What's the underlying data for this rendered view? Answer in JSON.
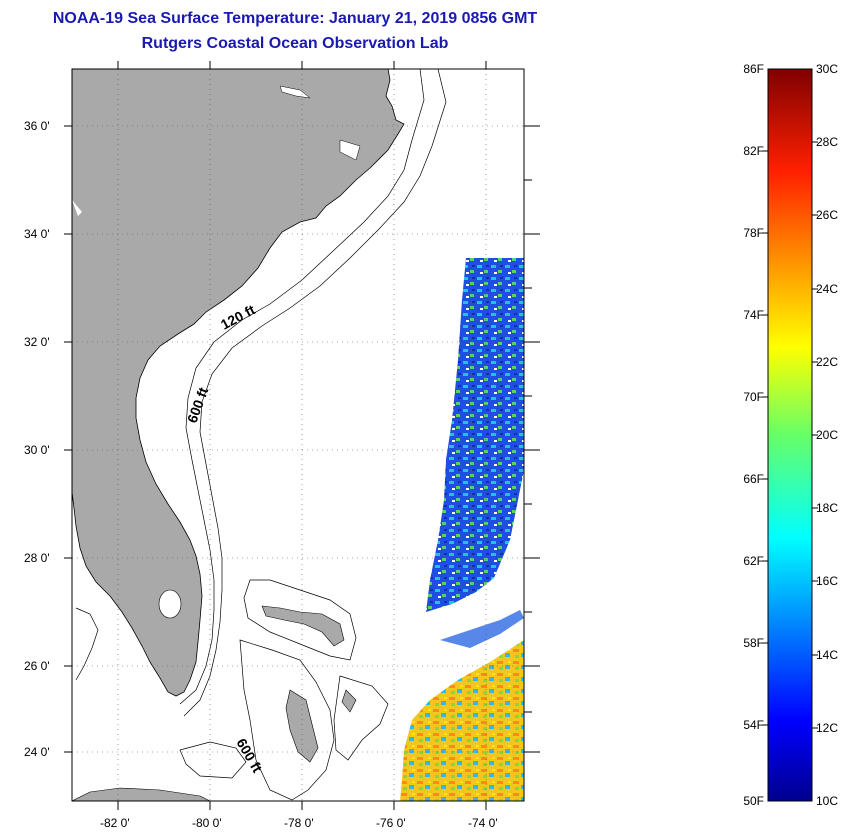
{
  "header": {
    "title_line1": "NOAA-19 Sea Surface Temperature:  January 21, 2019 0856 GMT",
    "title_line2": "Rutgers Coastal Ocean Observation Lab"
  },
  "map": {
    "lat_labels": [
      "36 0'",
      "34 0'",
      "32 0'",
      "30 0'",
      "28 0'",
      "26 0'",
      "24 0'"
    ],
    "lon_labels": [
      "-82 0'",
      "-80 0'",
      "-78 0'",
      "-76 0'",
      "-74 0'"
    ],
    "contour_labels": {
      "c120": "120 ft",
      "c600a": "600 ft",
      "c600b": "600 ft"
    },
    "land_color": "#a9a9a9",
    "ocean_color": "#ffffff"
  },
  "colorbar": {
    "fahrenheit_labels": [
      "86F",
      "82F",
      "78F",
      "74F",
      "70F",
      "66F",
      "62F",
      "58F",
      "54F",
      "50F"
    ],
    "celsius_labels": [
      "30C",
      "28C",
      "26C",
      "24C",
      "22C",
      "20C",
      "18C",
      "16C",
      "14C",
      "12C",
      "10C"
    ],
    "min_c": 10,
    "max_c": 30
  }
}
